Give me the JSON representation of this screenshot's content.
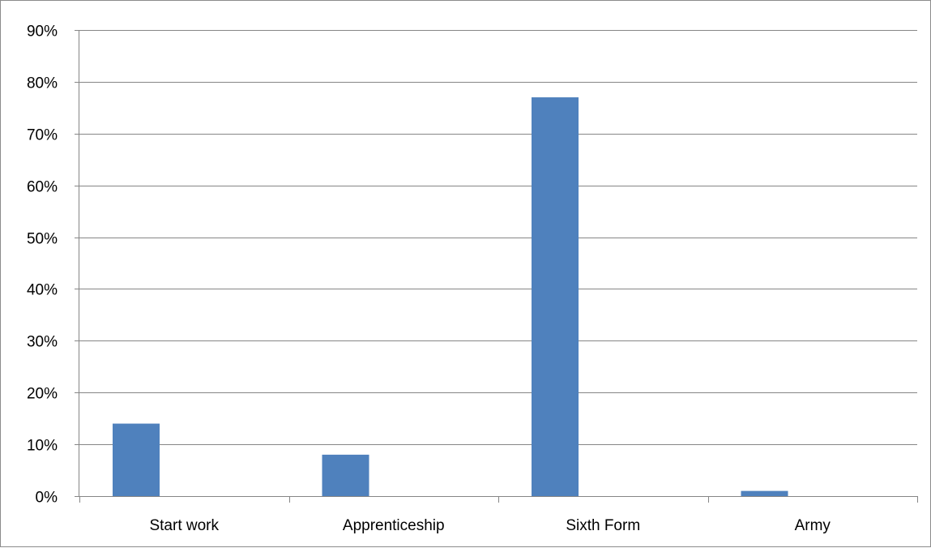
{
  "chart_data": {
    "type": "bar",
    "title": "",
    "xlabel": "",
    "ylabel": "",
    "categories": [
      "Start work",
      "Apprenticeship",
      "Sixth Form",
      "Army"
    ],
    "values": [
      14,
      8,
      77,
      1
    ],
    "value_unit": "%",
    "ylim": [
      0,
      90
    ],
    "y_ticks": [
      "0%",
      "10%",
      "20%",
      "30%",
      "40%",
      "50%",
      "60%",
      "70%",
      "80%",
      "90%"
    ],
    "grid": true,
    "legend": "none",
    "bar_color": "#4f81bd",
    "grid_color": "#868686"
  }
}
